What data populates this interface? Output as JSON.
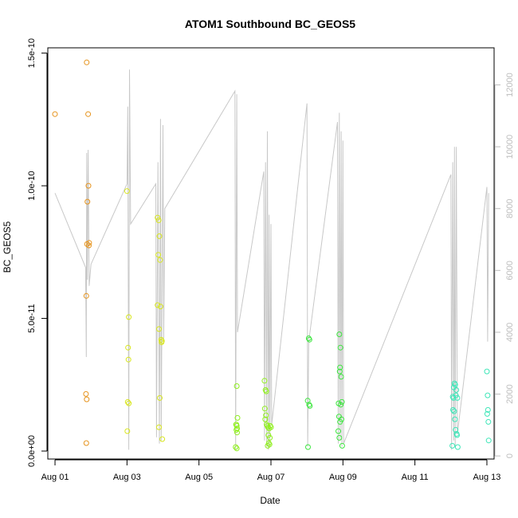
{
  "chart_data": {
    "type": "scatter",
    "title": "ATOM1 Southbound BC_GEOS5",
    "xlabel": "Date",
    "ylabel": "BC_GEOS5",
    "xlim_days": [
      0.8,
      13.2
    ],
    "ylim": [
      -3e-12,
      1.52e-10
    ],
    "x_ticks": [
      {
        "value": 1,
        "label": "Aug 01"
      },
      {
        "value": 3,
        "label": "Aug 03"
      },
      {
        "value": 5,
        "label": "Aug 05"
      },
      {
        "value": 7,
        "label": "Aug 07"
      },
      {
        "value": 9,
        "label": "Aug 09"
      },
      {
        "value": 11,
        "label": "Aug 11"
      },
      {
        "value": 13,
        "label": "Aug 13"
      }
    ],
    "y_ticks": [
      {
        "value": 0,
        "label": "0.0e+00"
      },
      {
        "value": 5e-11,
        "label": "5.0e-11"
      },
      {
        "value": 1e-10,
        "label": "1.0e-10"
      },
      {
        "value": 1.5e-10,
        "label": "1.5e-10"
      }
    ],
    "y2lim": [
      -100,
      13200
    ],
    "y2_ticks": [
      {
        "value": 0,
        "label": "0"
      },
      {
        "value": 2000,
        "label": "2000"
      },
      {
        "value": 4000,
        "label": "4000"
      },
      {
        "value": 6000,
        "label": "6000"
      },
      {
        "value": 8000,
        "label": "8000"
      },
      {
        "value": 10000,
        "label": "10000"
      },
      {
        "value": 12000,
        "label": "12000"
      }
    ],
    "grid": false,
    "secondary_line": {
      "color": "#c8c8c8",
      "points": [
        [
          1.0,
          8500
        ],
        [
          1.85,
          6100
        ],
        [
          1.87,
          3200
        ],
        [
          1.88,
          9800
        ],
        [
          1.9,
          5700
        ],
        [
          1.92,
          9900
        ],
        [
          1.95,
          5500
        ],
        [
          2.0,
          6200
        ],
        [
          3.0,
          8800
        ],
        [
          3.02,
          11300
        ],
        [
          3.05,
          200
        ],
        [
          3.07,
          12500
        ],
        [
          3.1,
          7500
        ],
        [
          3.8,
          8800
        ],
        [
          3.82,
          600
        ],
        [
          3.86,
          9500
        ],
        [
          3.9,
          400
        ],
        [
          3.93,
          10900
        ],
        [
          3.95,
          500
        ],
        [
          4.0,
          10700
        ],
        [
          4.02,
          3800
        ],
        [
          4.05,
          8000
        ],
        [
          6.0,
          11800
        ],
        [
          6.02,
          200
        ],
        [
          6.05,
          11700
        ],
        [
          6.07,
          4000
        ],
        [
          6.8,
          9200
        ],
        [
          6.82,
          500
        ],
        [
          6.85,
          9500
        ],
        [
          6.88,
          300
        ],
        [
          6.9,
          10500
        ],
        [
          6.93,
          200
        ],
        [
          6.95,
          7800
        ],
        [
          6.97,
          400
        ],
        [
          7.0,
          7500
        ],
        [
          7.02,
          1000
        ],
        [
          8.0,
          11400
        ],
        [
          8.02,
          300
        ],
        [
          8.05,
          3700
        ],
        [
          8.85,
          10800
        ],
        [
          8.87,
          400
        ],
        [
          8.9,
          11100
        ],
        [
          8.92,
          500
        ],
        [
          8.95,
          10500
        ],
        [
          8.97,
          300
        ],
        [
          9.0,
          10200
        ],
        [
          9.02,
          400
        ],
        [
          12.0,
          9100
        ],
        [
          12.02,
          200
        ],
        [
          12.05,
          9500
        ],
        [
          12.08,
          500
        ],
        [
          12.1,
          10000
        ],
        [
          12.12,
          300
        ],
        [
          12.15,
          10000
        ],
        [
          12.18,
          700
        ],
        [
          13.0,
          8700
        ],
        [
          13.02,
          3700
        ],
        [
          13.05,
          8500
        ]
      ]
    },
    "series": [
      {
        "color": "#e6941e",
        "x": [
          1.0,
          1.88,
          1.92,
          1.93,
          1.9,
          1.89,
          1.94,
          1.95,
          1.87,
          1.86,
          1.88,
          1.87
        ],
        "y": [
          1.27e-10,
          1.465e-10,
          1.27e-10,
          1e-10,
          9.4e-11,
          7.8e-11,
          7.75e-11,
          7.85e-11,
          5.85e-11,
          2.15e-11,
          1.95e-11,
          3e-12
        ]
      },
      {
        "color": "#d8e61e",
        "x": [
          3.0,
          3.05,
          3.03,
          3.04,
          3.02,
          3.05,
          3.01,
          3.85,
          3.88,
          3.9,
          3.87,
          3.92,
          3.85,
          3.93,
          3.89,
          3.95,
          3.96,
          3.97,
          3.91,
          3.98,
          3.89
        ],
        "y": [
          9.8e-11,
          5.05e-11,
          3.9e-11,
          3.45e-11,
          1.85e-11,
          1.8e-11,
          7.5e-12,
          8.8e-11,
          8.7e-11,
          8.1e-11,
          7.4e-11,
          7.2e-11,
          5.5e-11,
          5.45e-11,
          4.6e-11,
          4.2e-11,
          4.1e-11,
          4.15e-11,
          2e-11,
          4.5e-12,
          9e-12
        ]
      },
      {
        "color": "#90f01e",
        "x": [
          6.05,
          6.07,
          6.03,
          6.05,
          6.04,
          6.06,
          6.02,
          6.05,
          6.04,
          6.06,
          6.82,
          6.85,
          6.87,
          6.83,
          6.86,
          6.84,
          6.88,
          6.9,
          6.92,
          6.95,
          6.93,
          6.97,
          6.94,
          6.96,
          6.91,
          7.0,
          6.98
        ],
        "y": [
          2.45e-11,
          1.25e-11,
          1e-11,
          9.5e-12,
          8e-12,
          7e-12,
          1.5e-12,
          1e-12,
          1e-11,
          8.5e-12,
          2.65e-11,
          2.3e-11,
          2.25e-11,
          1.6e-11,
          1.35e-11,
          1.2e-11,
          1e-11,
          9.5e-12,
          9e-12,
          8.5e-12,
          6e-12,
          5e-12,
          3e-12,
          2.5e-12,
          2e-12,
          9e-12,
          9.5e-12
        ]
      },
      {
        "color": "#3ee640",
        "x": [
          8.05,
          8.07,
          8.02,
          8.06,
          8.08,
          8.03,
          8.9,
          8.93,
          8.92,
          8.91,
          8.95,
          8.88,
          8.94,
          8.97,
          8.89,
          8.96,
          8.87,
          8.9,
          8.92,
          8.98
        ],
        "y": [
          4.25e-11,
          4.2e-11,
          1.9e-11,
          1.75e-11,
          1.7e-11,
          1.5e-12,
          4.4e-11,
          3.9e-11,
          3.15e-11,
          3e-11,
          2.8e-11,
          1.8e-11,
          1.75e-11,
          1.85e-11,
          1.3e-11,
          1.2e-11,
          7.5e-12,
          5e-12,
          1.1e-11,
          2e-12
        ]
      },
      {
        "color": "#3ee6b8",
        "x": [
          12.1,
          12.12,
          12.08,
          12.15,
          12.05,
          12.07,
          12.14,
          12.18,
          12.06,
          12.09,
          12.11,
          12.13,
          12.16,
          12.17,
          12.04,
          12.19,
          13.0,
          13.02,
          13.03,
          13.01,
          13.04,
          13.05
        ],
        "y": [
          2.55e-11,
          2.5e-11,
          2.4e-11,
          2.3e-11,
          2.05e-11,
          2e-11,
          2.1e-11,
          2e-11,
          1.55e-11,
          1.5e-11,
          1.2e-11,
          8e-12,
          6.5e-12,
          6e-12,
          2e-12,
          1.5e-12,
          3e-11,
          2.1e-11,
          1.55e-11,
          1.4e-11,
          1.1e-11,
          4e-12
        ]
      }
    ]
  }
}
